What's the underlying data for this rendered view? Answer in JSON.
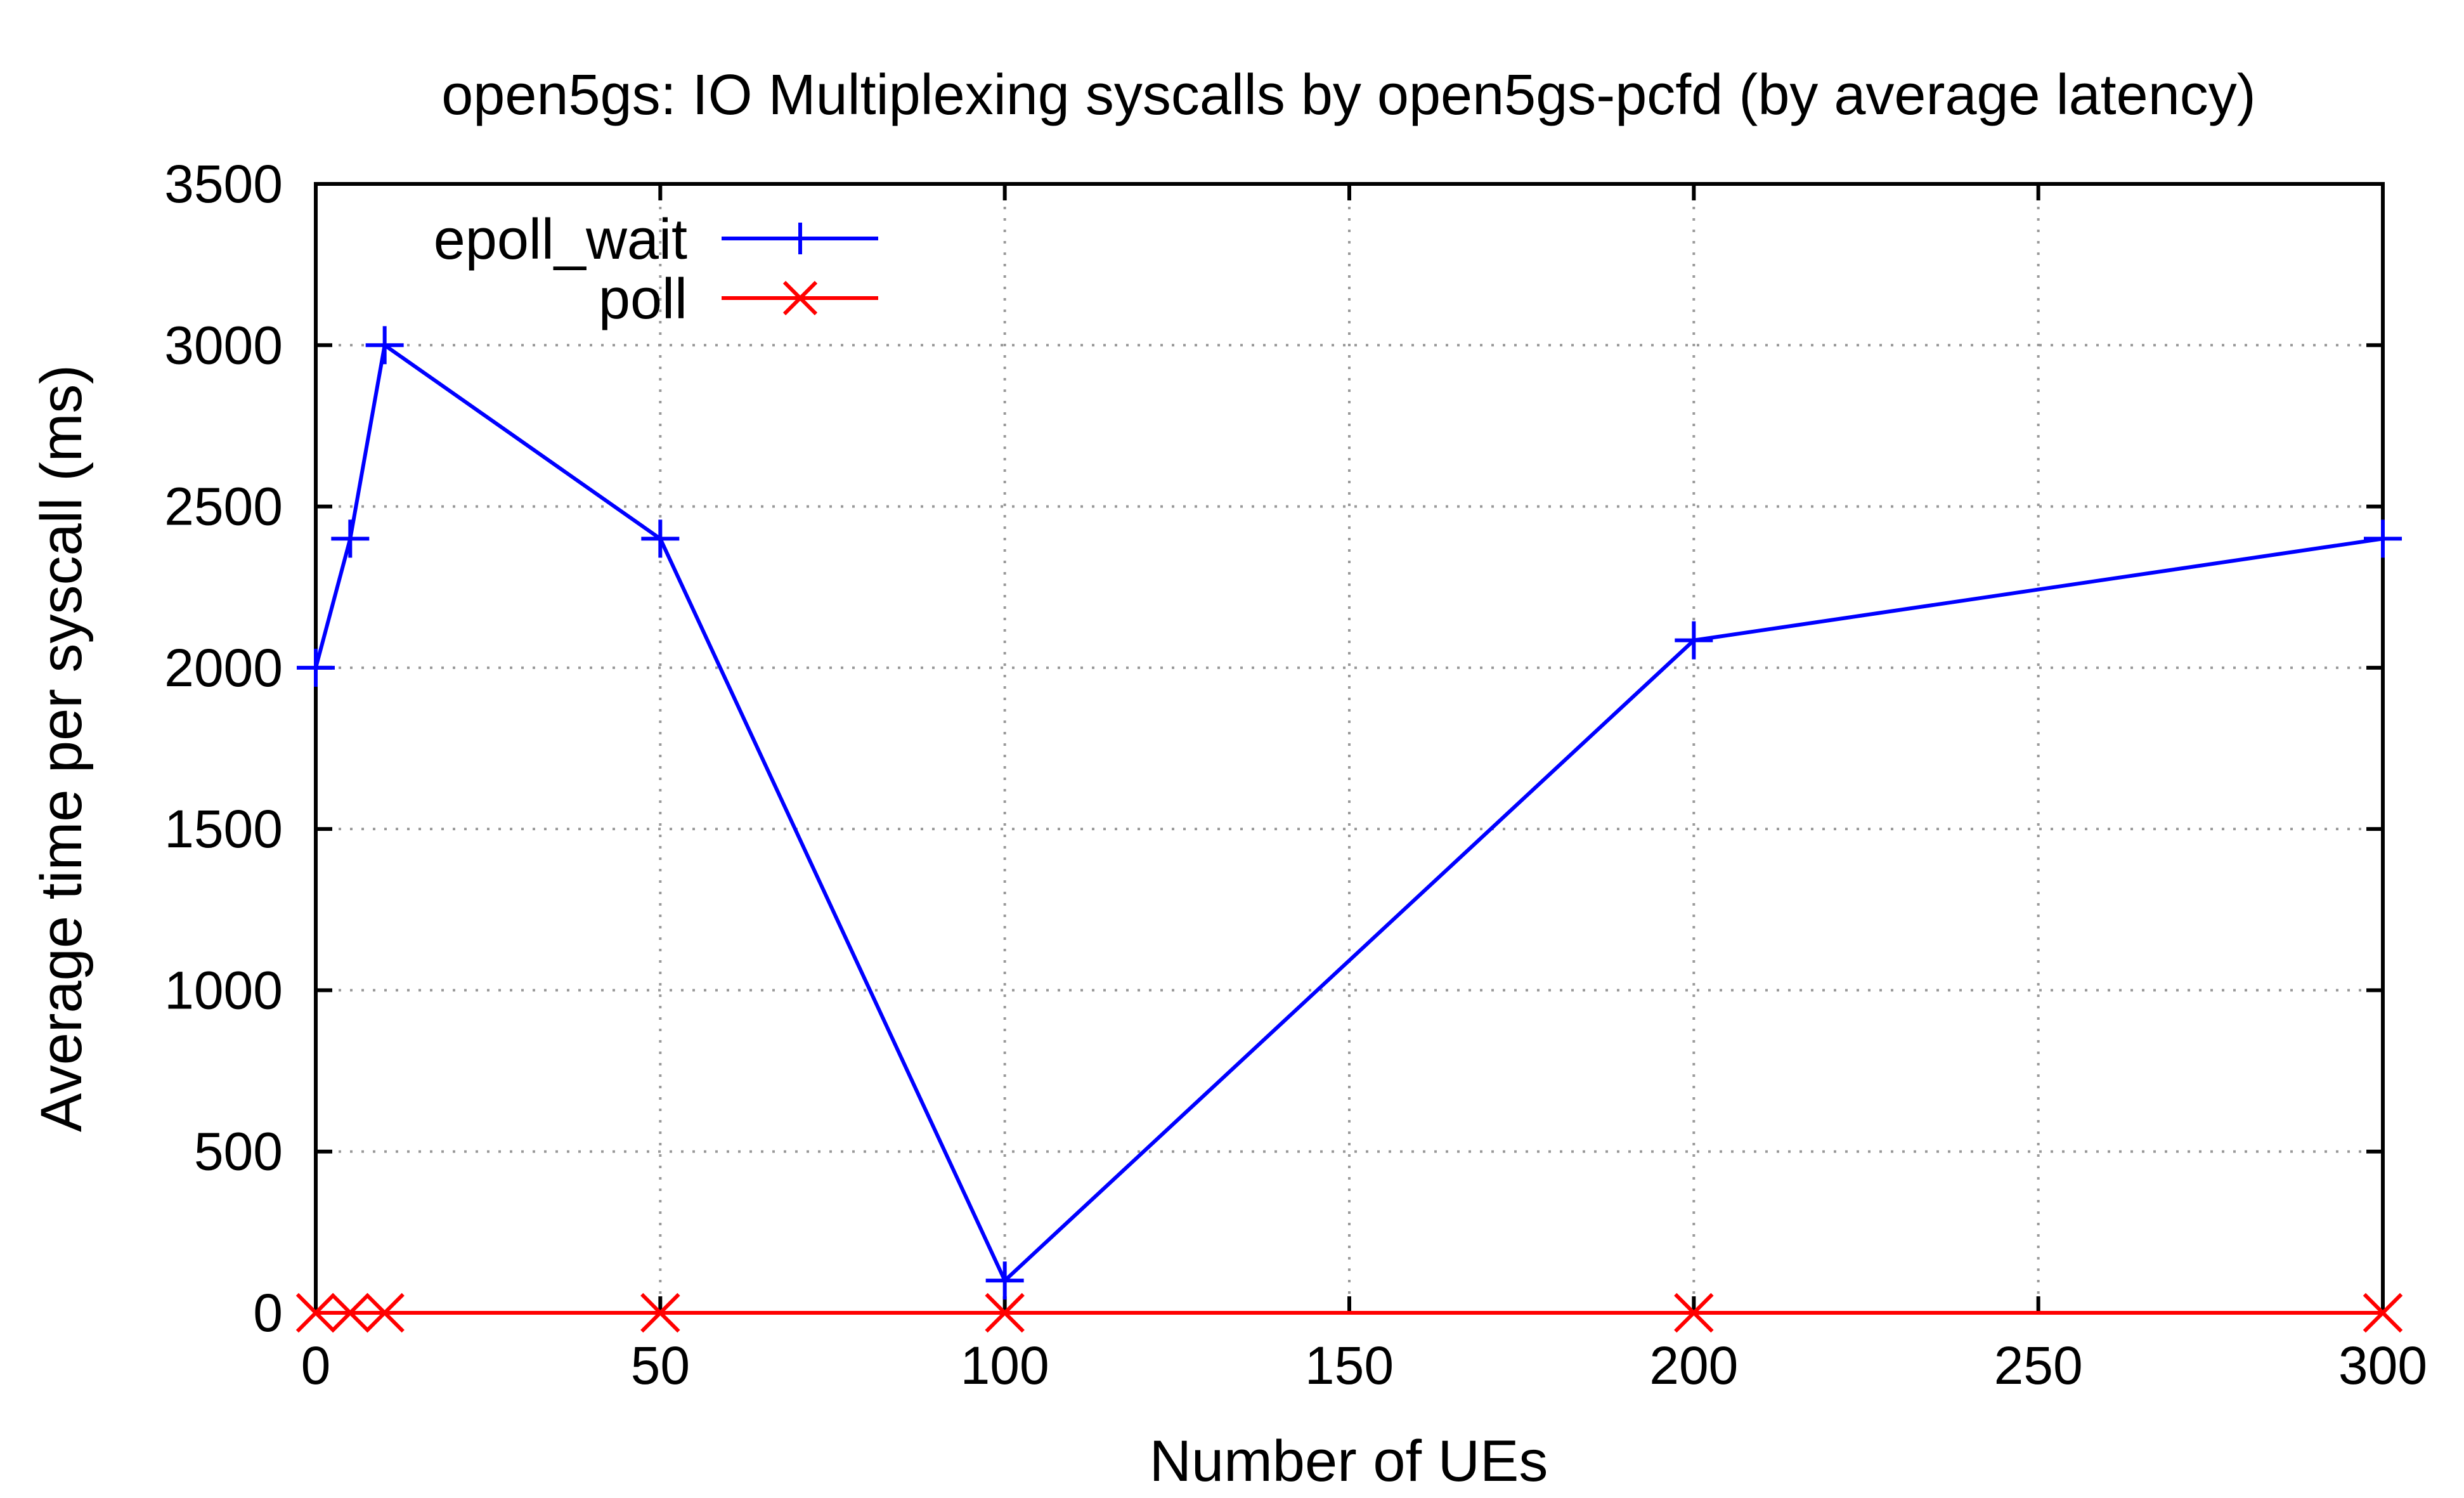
{
  "chart_data": {
    "type": "line",
    "title": "open5gs: IO Multiplexing syscalls by open5gs-pcfd (by average latency)",
    "xlabel": "Number of UEs",
    "ylabel": "Average time per syscall (ms)",
    "xlim": [
      0,
      300
    ],
    "ylim": [
      0,
      3500
    ],
    "x_ticks": [
      0,
      50,
      100,
      150,
      200,
      250,
      300
    ],
    "y_ticks": [
      0,
      500,
      1000,
      1500,
      2000,
      2500,
      3000,
      3500
    ],
    "grid": true,
    "legend_position": "top-left",
    "series": [
      {
        "name": "epoll_wait",
        "color": "#0000ff",
        "marker": "plus",
        "x": [
          0,
          5,
          10,
          50,
          100,
          200,
          300
        ],
        "y": [
          2000,
          2400,
          3000,
          2400,
          100,
          2085,
          2400
        ]
      },
      {
        "name": "poll",
        "color": "#ff0000",
        "marker": "cross",
        "x": [
          0,
          5,
          10,
          50,
          100,
          200,
          300
        ],
        "y": [
          0,
          0,
          0,
          0,
          0,
          0,
          0
        ]
      }
    ]
  }
}
